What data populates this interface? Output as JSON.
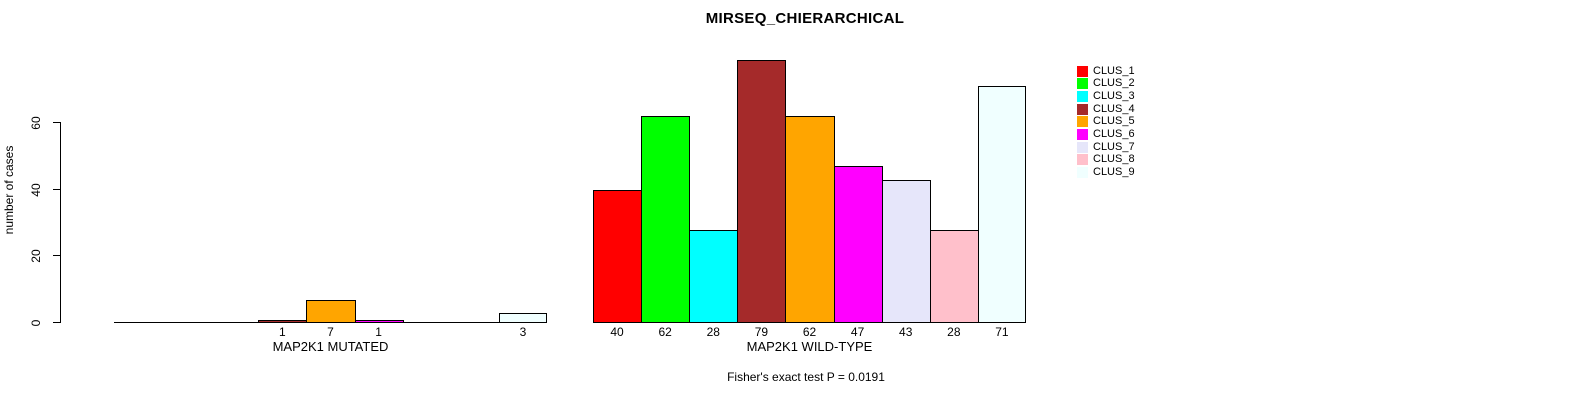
{
  "chart_data": {
    "type": "bar",
    "title": "MIRSEQ_CHIERARCHICAL",
    "ylabel": "number of cases",
    "xlabel": "",
    "ylim": [
      0,
      79
    ],
    "yticks": [
      0,
      20,
      40,
      60
    ],
    "grid": false,
    "background": "#ffffff",
    "bar_border_color": "#000000",
    "categories": [
      "CLUS_1",
      "CLUS_2",
      "CLUS_3",
      "CLUS_4",
      "CLUS_5",
      "CLUS_6",
      "CLUS_7",
      "CLUS_8",
      "CLUS_9"
    ],
    "colors": [
      "#FF0000",
      "#00FF00",
      "#00FFFF",
      "#A52A2A",
      "#FFA500",
      "#FF00FF",
      "#E6E6FA",
      "#FFC0CB",
      "#F0FFFF"
    ],
    "groups": [
      {
        "label": "MAP2K1 MUTATED",
        "values": [
          0,
          0,
          0,
          1,
          7,
          1,
          0,
          0,
          3
        ]
      },
      {
        "label": "MAP2K1 WILD-TYPE",
        "values": [
          40,
          62,
          28,
          79,
          62,
          47,
          43,
          28,
          71
        ]
      }
    ],
    "value_labels_shown_only_for_nonzero": true,
    "legend_position": "right",
    "legend": [
      {
        "label": "CLUS_1",
        "color": "#FF0000"
      },
      {
        "label": "CLUS_2",
        "color": "#00FF00"
      },
      {
        "label": "CLUS_3",
        "color": "#00FFFF"
      },
      {
        "label": "CLUS_4",
        "color": "#A52A2A"
      },
      {
        "label": "CLUS_5",
        "color": "#FFA500"
      },
      {
        "label": "CLUS_6",
        "color": "#FF00FF"
      },
      {
        "label": "CLUS_7",
        "color": "#E6E6FA"
      },
      {
        "label": "CLUS_8",
        "color": "#FFC0CB"
      },
      {
        "label": "CLUS_9",
        "color": "#F0FFFF"
      }
    ],
    "annotation": "Fisher's exact test P = 0.0191"
  }
}
